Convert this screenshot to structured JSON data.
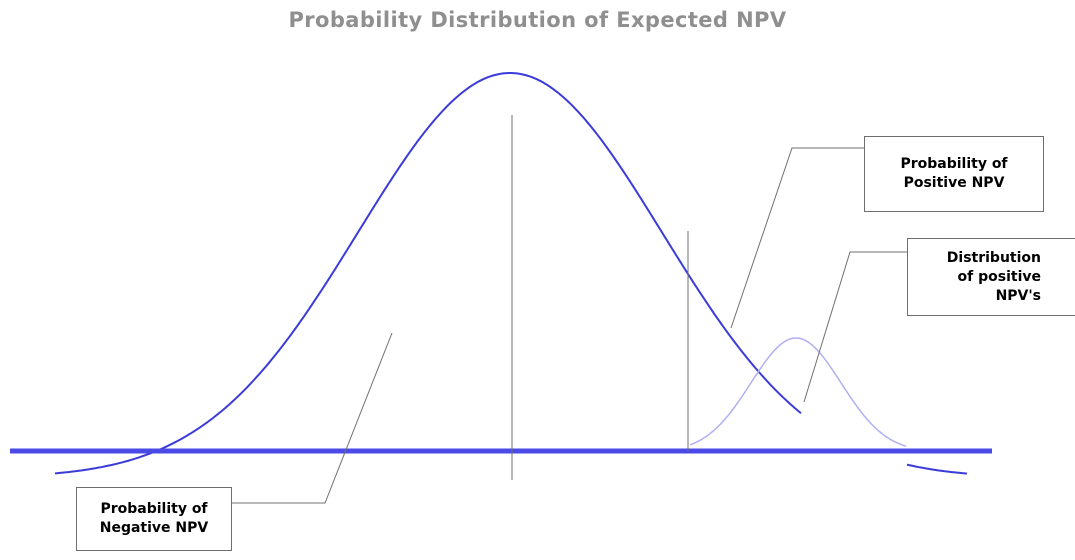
{
  "title": "Probability Distribution of Expected NPV",
  "labels": {
    "negative": [
      "Probability of",
      "Negative NPV"
    ],
    "positive": [
      "Probability of",
      "Positive NPV"
    ],
    "distribution": [
      "Distribution",
      "of positive",
      "NPV's"
    ]
  },
  "colors": {
    "title": "#8f8f8f",
    "main_curve": "#3b3bd9",
    "positive_curve": "#b0b0f0",
    "baseline": "#4a4ae6",
    "lines": "#707070"
  }
}
